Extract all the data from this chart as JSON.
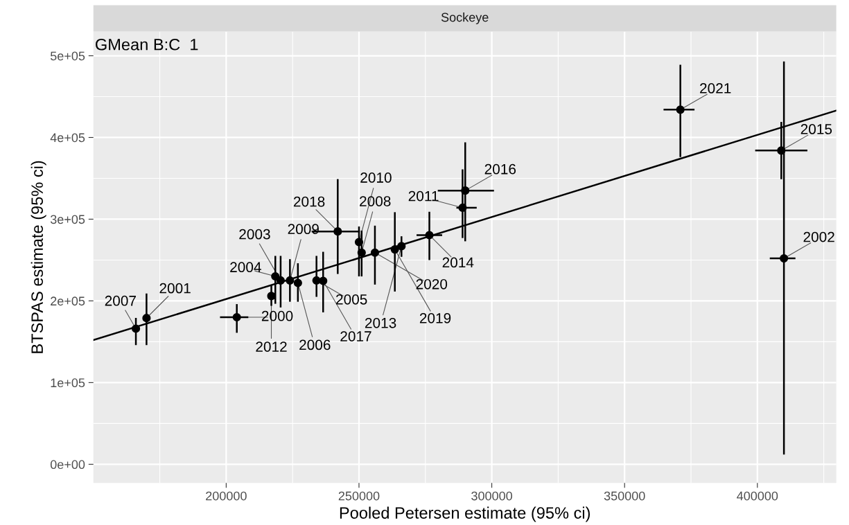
{
  "chart_data": {
    "type": "scatter",
    "title": "Sockeye",
    "xlabel": "Pooled Petersen estimate (95% ci)",
    "ylabel": "BTSPAS estimate (95% ci)",
    "annotations": [
      "GMean B:C  1",
      {
        "text": "2000",
        "x": 204000,
        "y": 180000
      },
      {
        "text": "2001",
        "x": 170000,
        "y": 179000
      },
      {
        "text": "2002",
        "x": 410000,
        "y": 252000
      },
      {
        "text": "2004",
        "x": 218500,
        "y": 230000
      },
      {
        "text": "2009",
        "x": 224000,
        "y": 225000
      },
      {
        "text": "2003",
        "x": 220500,
        "y": 225000
      },
      {
        "text": "2006",
        "x": 227000,
        "y": 222000
      },
      {
        "text": "2005",
        "x": 234000,
        "y": 225000
      },
      {
        "text": "2017",
        "x": 236500,
        "y": 224500
      },
      {
        "text": "2007",
        "x": 166000,
        "y": 166000
      },
      {
        "text": "2008",
        "x": 251000,
        "y": 259000
      },
      {
        "text": "2020",
        "x": 256000,
        "y": 259000
      },
      {
        "text": "2010",
        "x": 250000,
        "y": 272000
      },
      {
        "text": "2011",
        "x": 289000,
        "y": 314000
      },
      {
        "text": "2012",
        "x": 217000,
        "y": 206000
      },
      {
        "text": "2013",
        "x": 266000,
        "y": 267000
      },
      {
        "text": "2014",
        "x": 276500,
        "y": 280500
      },
      {
        "text": "2015",
        "x": 409000,
        "y": 384000
      },
      {
        "text": "2016",
        "x": 290000,
        "y": 335000
      },
      {
        "text": "2018",
        "x": 242000,
        "y": 285000
      },
      {
        "text": "2019",
        "x": 263500,
        "y": 263000
      },
      {
        "text": "2021",
        "x": 371000,
        "y": 434000
      }
    ],
    "xlim": [
      150000,
      429700
    ],
    "ylim": [
      -22900,
      529700
    ],
    "xticks": [
      200000,
      250000,
      300000,
      350000,
      400000
    ],
    "yticks": [
      {
        "value": 0,
        "label": "0e+00"
      },
      {
        "value": 100000,
        "label": "1e+05"
      },
      {
        "value": 200000,
        "label": "2e+05"
      },
      {
        "value": 300000,
        "label": "3e+05"
      },
      {
        "value": 400000,
        "label": "4e+05"
      },
      {
        "value": 500000,
        "label": "5e+05"
      }
    ],
    "grid": true,
    "legend": false,
    "series": [
      {
        "color": "#000000",
        "marker": "circle",
        "x": [
          204000,
          170000,
          410000,
          218500,
          224000,
          220500,
          227000,
          234000,
          236500,
          166000,
          251000,
          256000,
          250000,
          289000,
          217000,
          266000,
          276500,
          409000,
          290000,
          242000,
          263500,
          371000
        ],
        "values": [
          180000,
          179000,
          252000,
          230000,
          225000,
          225000,
          222000,
          225000,
          224500,
          166000,
          259000,
          259000,
          272000,
          314000,
          206000,
          267000,
          280500,
          384000,
          335000,
          285000,
          263000,
          434000
        ],
        "errors": [
          [
            162000,
            195000
          ],
          [
            147000,
            208000
          ],
          [
            13000,
            492000
          ],
          [
            197500,
            254000
          ],
          [
            200000,
            250000
          ],
          [
            193000,
            254000
          ],
          [
            200000,
            245000
          ],
          [
            206000,
            254000
          ],
          [
            187000,
            259000
          ],
          [
            147000,
            178000
          ],
          [
            231000,
            285000
          ],
          [
            221000,
            291000
          ],
          [
            231000,
            290000
          ],
          [
            278000,
            360000
          ],
          [
            195000,
            218000
          ],
          [
            255000,
            278000
          ],
          [
            251000,
            308000
          ],
          [
            350000,
            418000
          ],
          [
            274000,
            393000
          ],
          [
            234000,
            348000
          ],
          [
            212500,
            307500
          ],
          [
            377000,
            488000
          ]
        ],
        "xerrors": [
          [
            198000,
            208000
          ],
          null,
          [
            405000,
            414000
          ],
          null,
          null,
          null,
          null,
          null,
          null,
          null,
          null,
          null,
          null,
          [
            287000,
            294000
          ],
          null,
          null,
          [
            272000,
            281000
          ],
          [
            399500,
            418500
          ],
          [
            280000,
            300500
          ],
          [
            232500,
            250000
          ],
          null,
          [
            365000,
            376000
          ]
        ]
      },
      {
        "type": "line",
        "color": "#000000",
        "x": [
          150000,
          429700
        ],
        "values": [
          152000,
          433000
        ]
      }
    ]
  }
}
